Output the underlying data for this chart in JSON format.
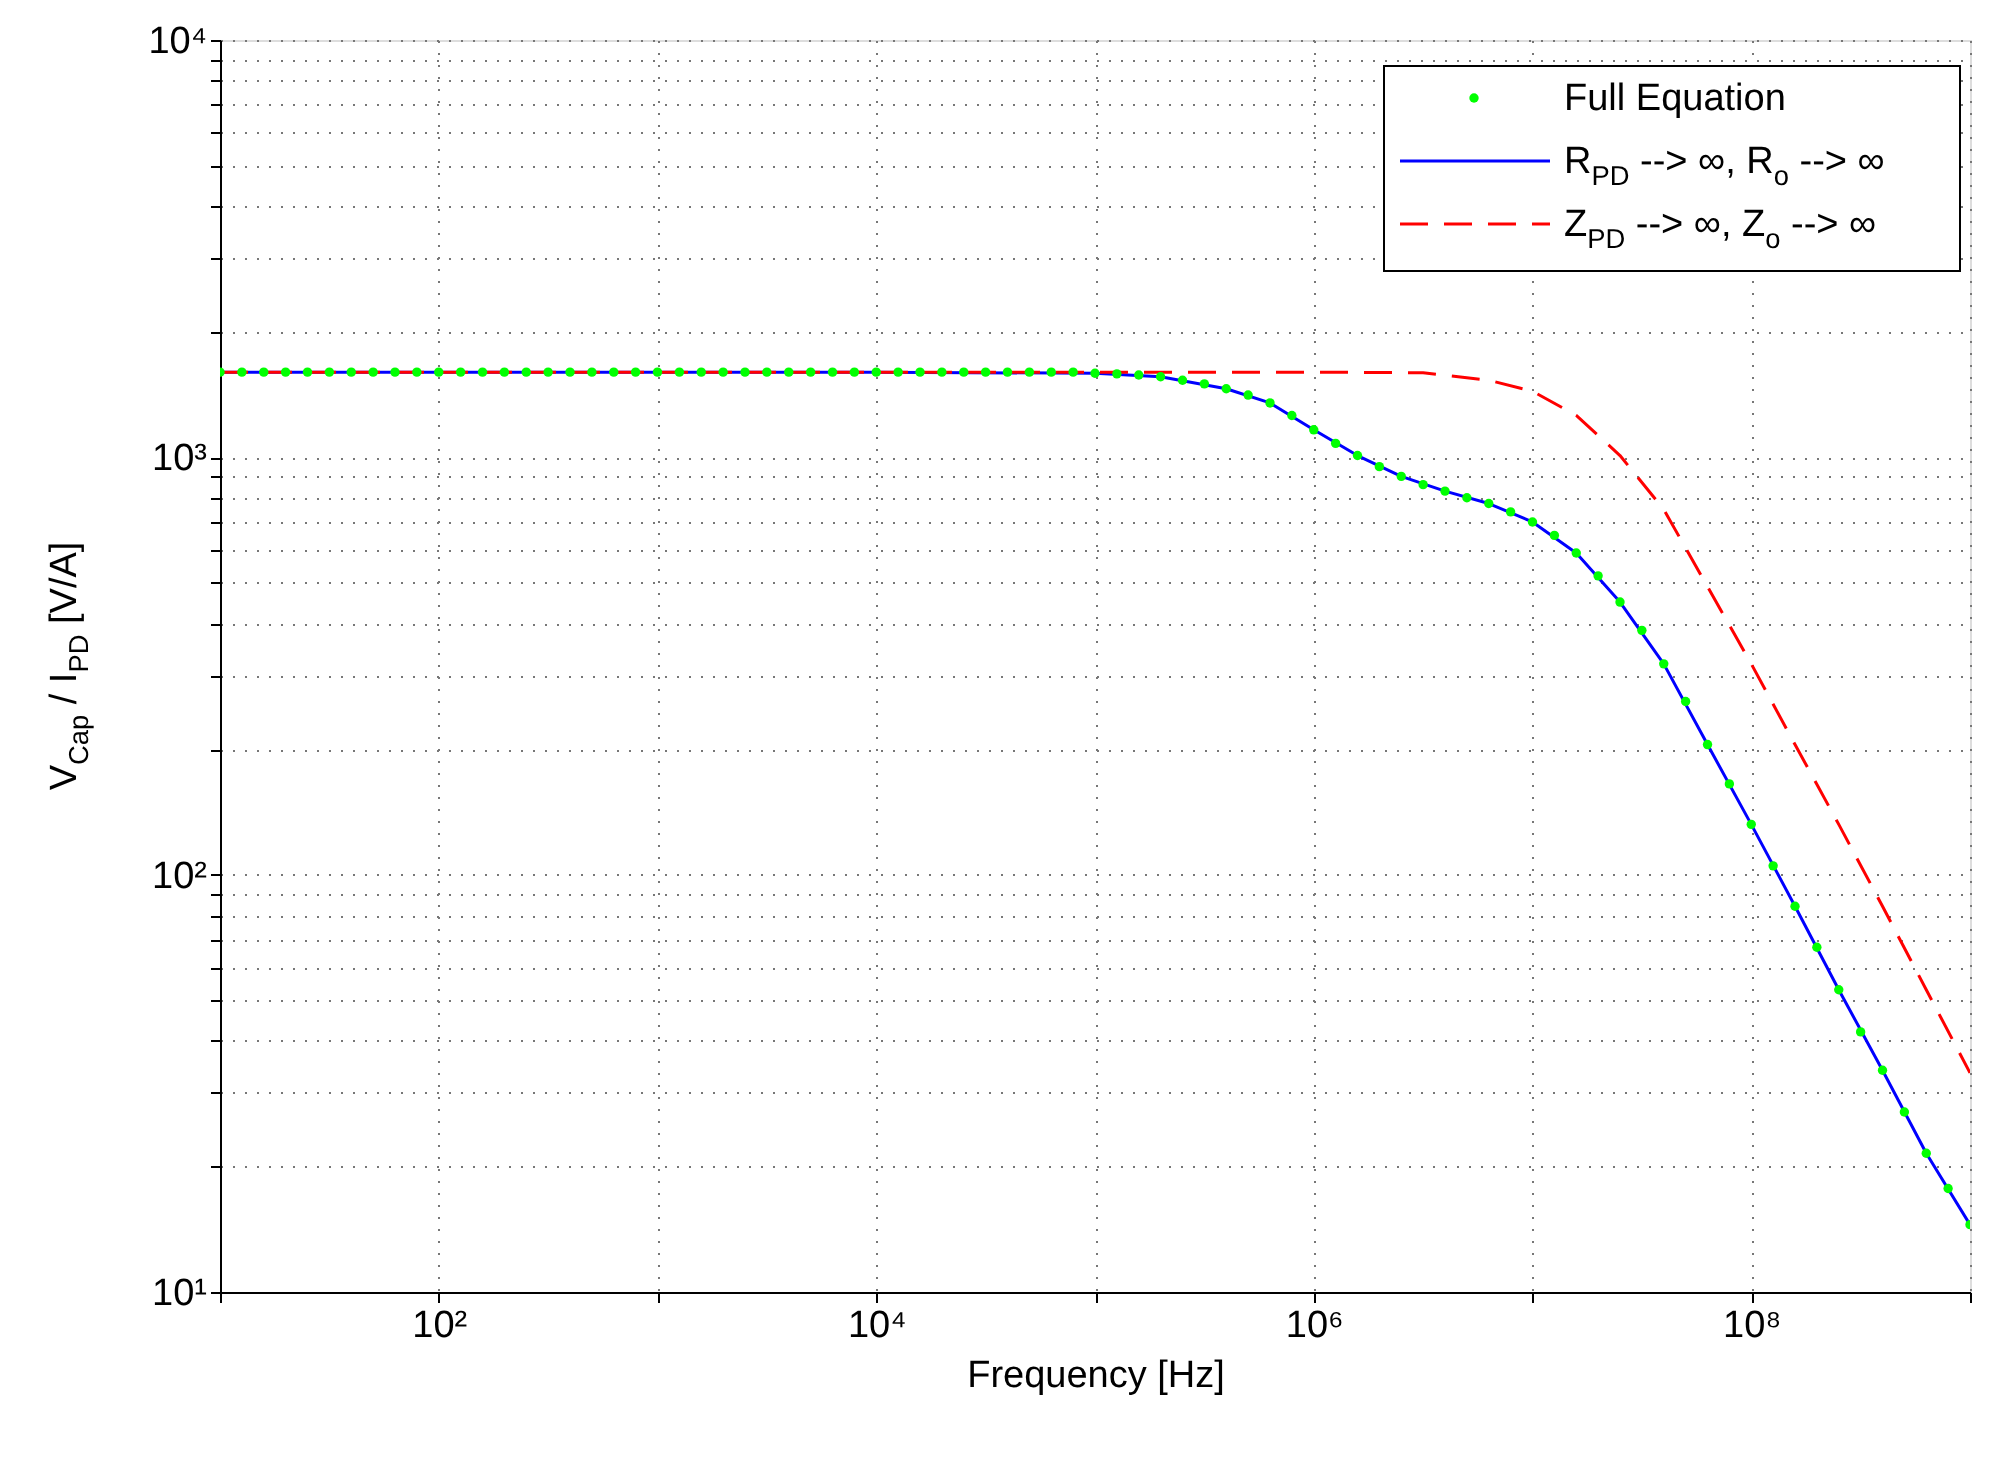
{
  "chart_data": {
    "type": "line",
    "xlabel": "Frequency [Hz]",
    "ylabel": "V$_{Cap}$ / I$_{PD}$ [V/A]",
    "log": "xy",
    "grid": true,
    "legend": "top right",
    "xlim": [
      10,
      1000000000.0
    ],
    "ylim": [
      10,
      10000
    ],
    "xticks": [
      {
        "value": 10,
        "label": null
      },
      {
        "value": 100,
        "label": "10²"
      },
      {
        "value": 1000,
        "label": null
      },
      {
        "value": 10000,
        "label": "10⁴"
      },
      {
        "value": 100000,
        "label": null
      },
      {
        "value": 1000000,
        "label": "10⁶"
      },
      {
        "value": 10000000,
        "label": null
      },
      {
        "value": 100000000,
        "label": "10⁸"
      },
      {
        "value": 1000000000,
        "label": null
      }
    ],
    "yticks": [
      {
        "value": 10,
        "label": "10¹"
      },
      {
        "value": 20,
        "label": null
      },
      {
        "value": 30,
        "label": null
      },
      {
        "value": 40,
        "label": null
      },
      {
        "value": 50,
        "label": null
      },
      {
        "value": 60,
        "label": null
      },
      {
        "value": 70,
        "label": null
      },
      {
        "value": 80,
        "label": null
      },
      {
        "value": 90,
        "label": null
      },
      {
        "value": 100,
        "label": "10²"
      },
      {
        "value": 200,
        "label": null
      },
      {
        "value": 300,
        "label": null
      },
      {
        "value": 400,
        "label": null
      },
      {
        "value": 500,
        "label": null
      },
      {
        "value": 600,
        "label": null
      },
      {
        "value": 700,
        "label": null
      },
      {
        "value": 800,
        "label": null
      },
      {
        "value": 900,
        "label": null
      },
      {
        "value": 1000,
        "label": "10³"
      },
      {
        "value": 2000,
        "label": null
      },
      {
        "value": 3000,
        "label": null
      },
      {
        "value": 4000,
        "label": null
      },
      {
        "value": 5000,
        "label": null
      },
      {
        "value": 6000,
        "label": null
      },
      {
        "value": 7000,
        "label": null
      },
      {
        "value": 8000,
        "label": null
      },
      {
        "value": 9000,
        "label": null
      },
      {
        "value": 10000,
        "label": "10⁴"
      }
    ],
    "series": [
      {
        "name": "Full Equation",
        "type": "scatter",
        "marker": "circle",
        "color": "#00ff00",
        "x": [
          10.0,
          12.59,
          15.85,
          19.95,
          25.12,
          31.62,
          39.81,
          50.12,
          63.1,
          79.43,
          100.0,
          125.9,
          158.5,
          199.5,
          251.2,
          316.2,
          398.1,
          501.2,
          631.0,
          794.3,
          1000.0,
          1259.0,
          1585.0,
          1995.0,
          2512.0,
          3162.0,
          3981.0,
          5012.0,
          6310.0,
          7943.0,
          10000.0,
          12590.0,
          15850.0,
          19950.0,
          25120.0,
          31620.0,
          39810.0,
          50120.0,
          63100.0,
          79430.0,
          100000.0,
          125900.0,
          158500.0,
          199500.0,
          251200.0,
          316200.0,
          398100.0,
          501200.0,
          631000.0,
          794300.0,
          1000000.0,
          1259000.0,
          1585000.0,
          1995000.0,
          2512000.0,
          3162000.0,
          3981000.0,
          5012000.0,
          6310000.0,
          7943000.0,
          10000000.0,
          12590000.0,
          15850000.0,
          19950000.0,
          25120000.0,
          31620000.0,
          39810000.0,
          50120000.0,
          63100000.0,
          79430000.0,
          100000000.0,
          125900000.0,
          158500000.0,
          199500000.0,
          251200000.0,
          316200000.0,
          398100000.0,
          501200000.0,
          631000000.0,
          794300000.0,
          1000000000.0
        ],
        "values": [
          1600,
          1600,
          1600,
          1600,
          1600,
          1600,
          1600,
          1600,
          1600,
          1600,
          1600,
          1600,
          1600,
          1600,
          1600,
          1600,
          1600,
          1600,
          1600,
          1600,
          1600,
          1600,
          1600,
          1600,
          1600,
          1600,
          1600,
          1600,
          1600,
          1600,
          1600,
          1600,
          1600,
          1600,
          1600,
          1600,
          1600,
          1600,
          1600,
          1600,
          1590,
          1585,
          1575,
          1560,
          1530,
          1500,
          1460,
          1410,
          1350,
          1260,
          1164,
          1080,
          1010,
          950,
          900,
          860,
          830,
          800,
          775,
          740,
          700,
          650,
          590,
          520,
          450,
          385,
          320,
          260,
          205,
          165,
          132,
          105,
          84,
          67,
          53,
          42,
          34,
          27,
          21.5,
          17.7,
          14.5
        ]
      },
      {
        "name": "R$_{PD}$ --> ∞, R$_{o}$ --> ∞",
        "type": "line",
        "line_style": "solid",
        "color": "#0000ff",
        "x": [
          10.0,
          100.0,
          1000.0,
          10000.0,
          100000.0,
          199500.0,
          398100.0,
          631000.0,
          1000000.0,
          1585000.0,
          2512000.0,
          3981000.0,
          6310000.0,
          10000000.0,
          15850000.0,
          25120000.0,
          39810000.0,
          63100000.0,
          100000000.0,
          158500000.0,
          251200000.0,
          398100000.0,
          631000000.0,
          1000000000.0
        ],
        "values": [
          1600,
          1600,
          1600,
          1600,
          1590,
          1560,
          1460,
          1350,
          1164,
          1010,
          900,
          830,
          775,
          700,
          590,
          450,
          320,
          205,
          132,
          84,
          53,
          34,
          21.5,
          14.5
        ]
      },
      {
        "name": "Z$_{PD}$ --> ∞, Z$_{o}$ --> ∞",
        "type": "line",
        "line_style": "dashed",
        "color": "#ff0000",
        "x": [
          10.0,
          100.0,
          1000.0,
          10000.0,
          100000.0,
          1000000.0,
          3162000.0,
          6310000.0,
          10000000.0,
          15850000.0,
          25120000.0,
          39810000.0,
          63100000.0,
          100000000.0,
          158500000.0,
          251200000.0,
          398100000.0,
          631000000.0,
          1000000000.0
        ],
        "values": [
          1600,
          1600,
          1600,
          1600,
          1600,
          1600,
          1595,
          1530,
          1440,
          1260,
          1010,
          750,
          490,
          320,
          205,
          132,
          84,
          53,
          33.5
        ]
      }
    ]
  }
}
